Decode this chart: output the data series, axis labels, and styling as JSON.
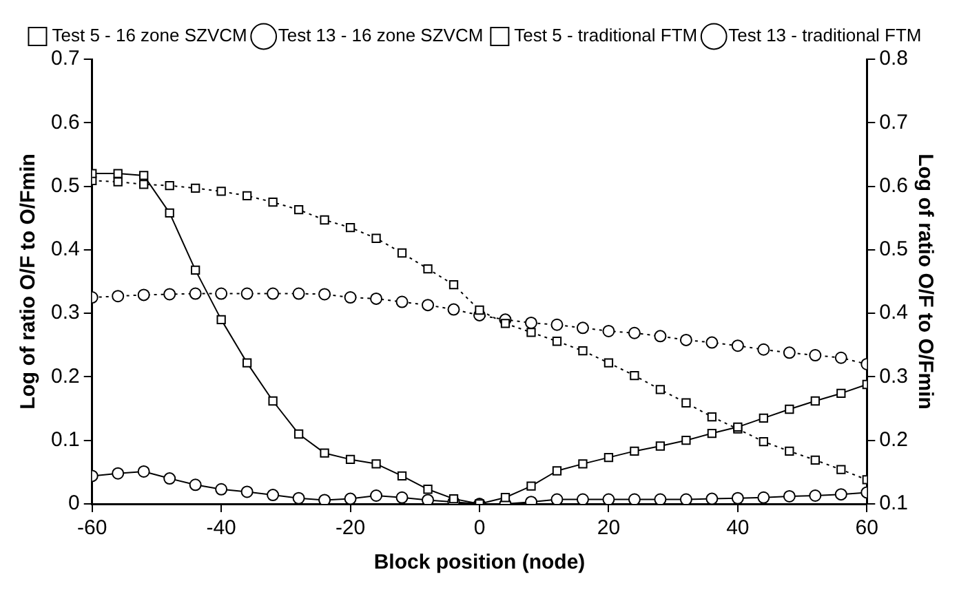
{
  "chart_data": {
    "type": "line",
    "xlabel": "Block position (node)",
    "ylabel": "Log of ratio O/F to O/Fmin",
    "y2label": "Log of ratio O/F to O/Fmin",
    "x": [
      -60,
      -56,
      -52,
      -48,
      -44,
      -40,
      -36,
      -32,
      -28,
      -24,
      -20,
      -16,
      -12,
      -8,
      -4,
      0,
      4,
      8,
      12,
      16,
      20,
      24,
      28,
      32,
      36,
      40,
      44,
      48,
      52,
      56,
      60
    ],
    "series": [
      {
        "name": "Test 5 - 16 zone SZVCM",
        "color": "#000000",
        "marker": "square",
        "line_style": "solid",
        "values": [
          0.52,
          0.52,
          0.517,
          0.458,
          0.368,
          0.29,
          0.222,
          0.162,
          0.11,
          0.08,
          0.07,
          0.063,
          0.044,
          0.023,
          0.008,
          0.0,
          0.01,
          0.028,
          0.052,
          0.063,
          0.073,
          0.083,
          0.091,
          0.1,
          0.111,
          0.121,
          0.135,
          0.149,
          0.162,
          0.174,
          0.188
        ]
      },
      {
        "name": "Test 13 - 16 zone SZVCM",
        "color": "#000000",
        "marker": "circle",
        "line_style": "solid",
        "values": [
          0.044,
          0.048,
          0.051,
          0.04,
          0.03,
          0.023,
          0.019,
          0.014,
          0.009,
          0.006,
          0.008,
          0.013,
          0.01,
          0.006,
          0.003,
          0.0,
          0.0,
          0.003,
          0.007,
          0.007,
          0.007,
          0.007,
          0.007,
          0.007,
          0.008,
          0.009,
          0.01,
          0.012,
          0.013,
          0.015,
          0.018
        ]
      },
      {
        "name": "Test 5 - traditional FTM",
        "color": "#000000",
        "marker": "square",
        "line_style": "dotted",
        "values": [
          0.509,
          0.507,
          0.503,
          0.501,
          0.497,
          0.492,
          0.485,
          0.475,
          0.463,
          0.447,
          0.435,
          0.418,
          0.395,
          0.37,
          0.345,
          0.305,
          0.284,
          0.27,
          0.256,
          0.241,
          0.222,
          0.202,
          0.18,
          0.159,
          0.137,
          0.118,
          0.098,
          0.083,
          0.069,
          0.054,
          0.038
        ]
      },
      {
        "name": "Test 13 - traditional FTM",
        "color": "#000000",
        "marker": "circle",
        "line_style": "dotted",
        "values": [
          0.325,
          0.327,
          0.329,
          0.33,
          0.331,
          0.331,
          0.331,
          0.331,
          0.331,
          0.33,
          0.325,
          0.323,
          0.318,
          0.313,
          0.306,
          0.297,
          0.29,
          0.285,
          0.282,
          0.277,
          0.272,
          0.269,
          0.264,
          0.258,
          0.254,
          0.249,
          0.243,
          0.238,
          0.234,
          0.23,
          0.22
        ]
      }
    ],
    "xlim": [
      -60,
      60
    ],
    "xticks": [
      -60,
      -40,
      -20,
      0,
      20,
      40,
      60
    ],
    "ylim": [
      0,
      0.7
    ],
    "yticks": [
      0.0,
      0.1,
      0.2,
      0.3,
      0.4,
      0.5,
      0.6,
      0.7
    ],
    "y2lim": [
      0.1,
      0.8
    ],
    "y2ticks": [
      0.1,
      0.2,
      0.3,
      0.4,
      0.5,
      0.6,
      0.7,
      0.8
    ],
    "grid": false,
    "legend": "top"
  }
}
